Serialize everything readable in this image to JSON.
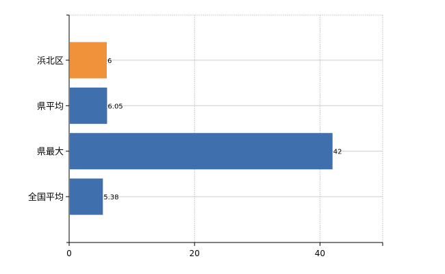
{
  "chart_data": {
    "type": "bar",
    "orientation": "horizontal",
    "categories": [
      "浜北区",
      "県平均",
      "県最大",
      "全国平均"
    ],
    "values": [
      6,
      6.05,
      42,
      5.38
    ],
    "value_labels": [
      "6",
      "6.05",
      "42",
      "5.38"
    ],
    "colors": [
      "#f0923a",
      "#3f6fad",
      "#3f6fad",
      "#3f6fad"
    ],
    "xlim": [
      0,
      50
    ],
    "xticks": [
      0,
      20,
      40
    ],
    "xtick_labels": [
      "0",
      "20",
      "40"
    ],
    "grid": true
  }
}
